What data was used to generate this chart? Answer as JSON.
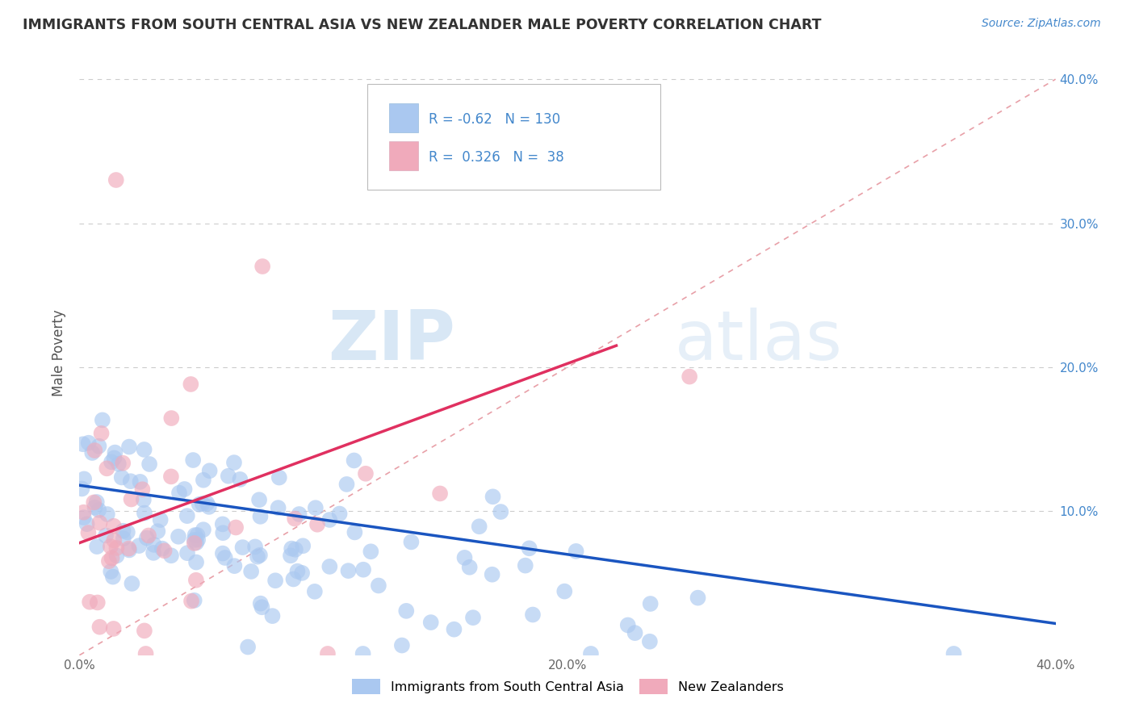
{
  "title": "IMMIGRANTS FROM SOUTH CENTRAL ASIA VS NEW ZEALANDER MALE POVERTY CORRELATION CHART",
  "source": "Source: ZipAtlas.com",
  "ylabel": "Male Poverty",
  "xmin": 0.0,
  "xmax": 0.4,
  "ymin": 0.0,
  "ymax": 0.42,
  "blue_R": -0.62,
  "blue_N": 130,
  "pink_R": 0.326,
  "pink_N": 38,
  "blue_color": "#aac8f0",
  "pink_color": "#f0aabb",
  "blue_line_color": "#1a55c0",
  "pink_line_color": "#e03060",
  "diag_color": "#e8a0a8",
  "grid_color": "#cccccc",
  "watermark_zip": "ZIP",
  "watermark_atlas": "atlas",
  "legend_label_blue": "Immigrants from South Central Asia",
  "legend_label_pink": "New Zealanders",
  "ytick_vals": [
    0.0,
    0.1,
    0.2,
    0.3,
    0.4
  ],
  "ytick_labels": [
    "",
    "10.0%",
    "20.0%",
    "30.0%",
    "40.0%"
  ],
  "xtick_vals": [
    0.0,
    0.1,
    0.2,
    0.3,
    0.4
  ],
  "xtick_labels": [
    "0.0%",
    "",
    "20.0%",
    "",
    "40.0%"
  ],
  "blue_line_x0": 0.0,
  "blue_line_x1": 0.4,
  "blue_line_y0": 0.118,
  "blue_line_y1": 0.022,
  "pink_line_x0": 0.0,
  "pink_line_x1": 0.22,
  "pink_line_y0": 0.078,
  "pink_line_y1": 0.215
}
